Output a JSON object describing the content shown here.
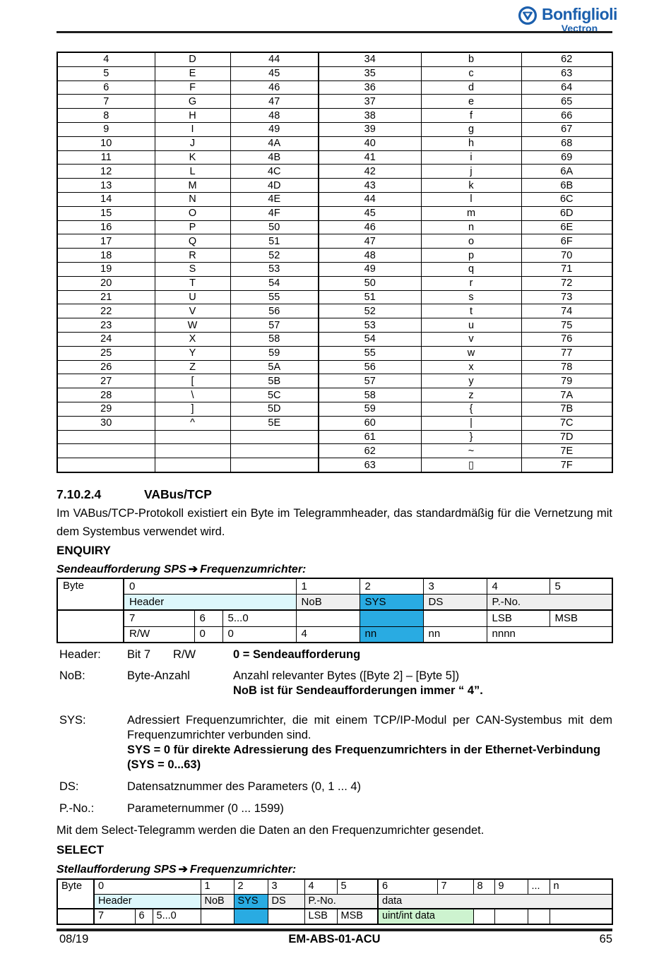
{
  "colors": {
    "logo_blue": "#1b5fad",
    "highlight_blue": "#29abe2",
    "header_cyan": "#ddf7fb",
    "cell_gray": "#efefef",
    "data_green": "#cdf3cf",
    "rule_dark": "#1e1e1e"
  },
  "logo": {
    "brand": "Bonfiglioli",
    "sub": "Vectron"
  },
  "ascii_table": {
    "rows": [
      [
        "4",
        "D",
        "44",
        "34",
        "b",
        "62"
      ],
      [
        "5",
        "E",
        "45",
        "35",
        "c",
        "63"
      ],
      [
        "6",
        "F",
        "46",
        "36",
        "d",
        "64"
      ],
      [
        "7",
        "G",
        "47",
        "37",
        "e",
        "65"
      ],
      [
        "8",
        "H",
        "48",
        "38",
        "f",
        "66"
      ],
      [
        "9",
        "I",
        "49",
        "39",
        "g",
        "67"
      ],
      [
        "10",
        "J",
        "4A",
        "40",
        "h",
        "68"
      ],
      [
        "11",
        "K",
        "4B",
        "41",
        "i",
        "69"
      ],
      [
        "12",
        "L",
        "4C",
        "42",
        "j",
        "6A"
      ],
      [
        "13",
        "M",
        "4D",
        "43",
        "k",
        "6B"
      ],
      [
        "14",
        "N",
        "4E",
        "44",
        "l",
        "6C"
      ],
      [
        "15",
        "O",
        "4F",
        "45",
        "m",
        "6D"
      ],
      [
        "16",
        "P",
        "50",
        "46",
        "n",
        "6E"
      ],
      [
        "17",
        "Q",
        "51",
        "47",
        "o",
        "6F"
      ],
      [
        "18",
        "R",
        "52",
        "48",
        "p",
        "70"
      ],
      [
        "19",
        "S",
        "53",
        "49",
        "q",
        "71"
      ],
      [
        "20",
        "T",
        "54",
        "50",
        "r",
        "72"
      ],
      [
        "21",
        "U",
        "55",
        "51",
        "s",
        "73"
      ],
      [
        "22",
        "V",
        "56",
        "52",
        "t",
        "74"
      ],
      [
        "23",
        "W",
        "57",
        "53",
        "u",
        "75"
      ],
      [
        "24",
        "X",
        "58",
        "54",
        "v",
        "76"
      ],
      [
        "25",
        "Y",
        "59",
        "55",
        "w",
        "77"
      ],
      [
        "26",
        "Z",
        "5A",
        "56",
        "x",
        "78"
      ],
      [
        "27",
        "[",
        "5B",
        "57",
        "y",
        "79"
      ],
      [
        "28",
        "\\",
        "5C",
        "58",
        "z",
        "7A"
      ],
      [
        "29",
        "]",
        "5D",
        "59",
        "{",
        "7B"
      ],
      [
        "30",
        "^",
        "5E",
        "60",
        "|",
        "7C"
      ],
      [
        "",
        "",
        "",
        "61",
        "}",
        "7D"
      ],
      [
        "",
        "",
        "",
        "62",
        "~",
        "7E"
      ],
      [
        "",
        "",
        "",
        "63",
        "▯",
        "7F"
      ]
    ]
  },
  "section": {
    "number": "7.10.2.4",
    "title": "VABus/TCP",
    "intro": "Im VABus/TCP-Protokoll existiert ein Byte im Telegrammheader, das standardmäßig für die Vernetzung mit dem Systembus verwendet wird."
  },
  "enquiry": {
    "heading": "ENQUIRY",
    "sub_prefix": "Sendeaufforderung SPS",
    "arrow": "➔",
    "sub_suffix": "Frequenzumrichter:"
  },
  "select": {
    "heading": "SELECT",
    "intro": "Mit dem Select-Telegramm werden die Daten an den Frequenzumrichter gesendet.",
    "sub_prefix": "Stellaufforderung SPS",
    "arrow": "➔",
    "sub_suffix": "Frequenzumrichter:"
  },
  "proto": {
    "byte": "Byte",
    "header": "Header",
    "nob": "NoB",
    "sys": "SYS",
    "ds": "DS",
    "pno": "P.-No.",
    "data": "data",
    "bits": {
      "b7": "7",
      "b6": "6",
      "b50": "5...0"
    },
    "lsb": "LSB",
    "msb": "MSB",
    "uint": "uint/int data",
    "enquiry_bytes": [
      "0",
      "1",
      "2",
      "3",
      "4",
      "5"
    ],
    "select_bytes": [
      "0",
      "1",
      "2",
      "3",
      "4",
      "5",
      "6",
      "7",
      "8",
      "9",
      "...",
      "n"
    ],
    "enquiry_values": {
      "rw": "R/W",
      "v6": "0",
      "v50": "0",
      "nob": "4",
      "sys": "nn",
      "ds": "nn",
      "pno": "nnnn"
    }
  },
  "definitions": {
    "header": {
      "term": "Header:",
      "c1": "Bit 7",
      "c2": "R/W",
      "desc": "0 = Sendeaufforderung"
    },
    "nob": {
      "term": "NoB:",
      "c1": "Byte-Anzahl",
      "desc": "Anzahl relevanter Bytes ([Byte 2] – [Byte 5])",
      "desc_bold": "NoB ist für Sendeaufforderungen immer “ 4”."
    },
    "sys": {
      "term": "SYS:",
      "desc": "Adressiert Frequenzumrichter, die mit einem TCP/IP-Modul per CAN-Systembus mit dem Frequenzumrichter verbunden sind.",
      "desc_bold": "SYS = 0 für direkte Adressierung des Frequenzumrichters in der Ethernet-Verbindung",
      "desc_bold2": "(SYS = 0...63)"
    },
    "ds": {
      "term": "DS:",
      "desc": "Datensatznummer des Parameters (0, 1 ... 4)"
    },
    "pno": {
      "term": "P.-No.:",
      "desc": "Parameternummer (0 ... 1599)"
    }
  },
  "footer": {
    "date": "08/19",
    "code": "EM-ABS-01-ACU",
    "page": "65"
  }
}
